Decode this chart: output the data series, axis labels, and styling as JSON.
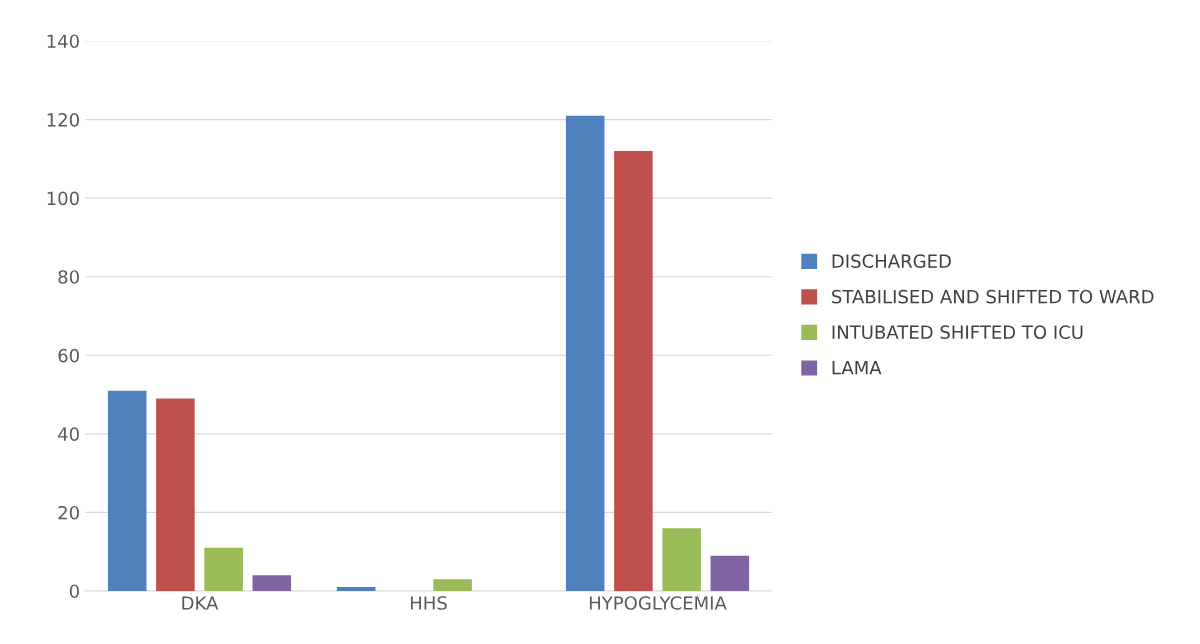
{
  "chart_data": {
    "type": "bar",
    "categories": [
      "DKA",
      "HHS",
      "HYPOGLYCEMIA"
    ],
    "series": [
      {
        "name": "DISCHARGED",
        "color": "#4f81bd",
        "values": [
          51,
          1,
          121
        ]
      },
      {
        "name": "STABILISED AND SHIFTED TO WARD",
        "color": "#c0504d",
        "values": [
          49,
          0,
          112
        ]
      },
      {
        "name": "INTUBATED SHIFTED TO ICU",
        "color": "#9bbb59",
        "values": [
          11,
          3,
          16
        ]
      },
      {
        "name": "LAMA",
        "color": "#8064a2",
        "values": [
          4,
          0,
          9
        ]
      }
    ],
    "ylim": [
      0,
      140
    ],
    "yticks": [
      0,
      20,
      40,
      60,
      80,
      100,
      120,
      140
    ],
    "grid": "y",
    "legend": "right"
  }
}
